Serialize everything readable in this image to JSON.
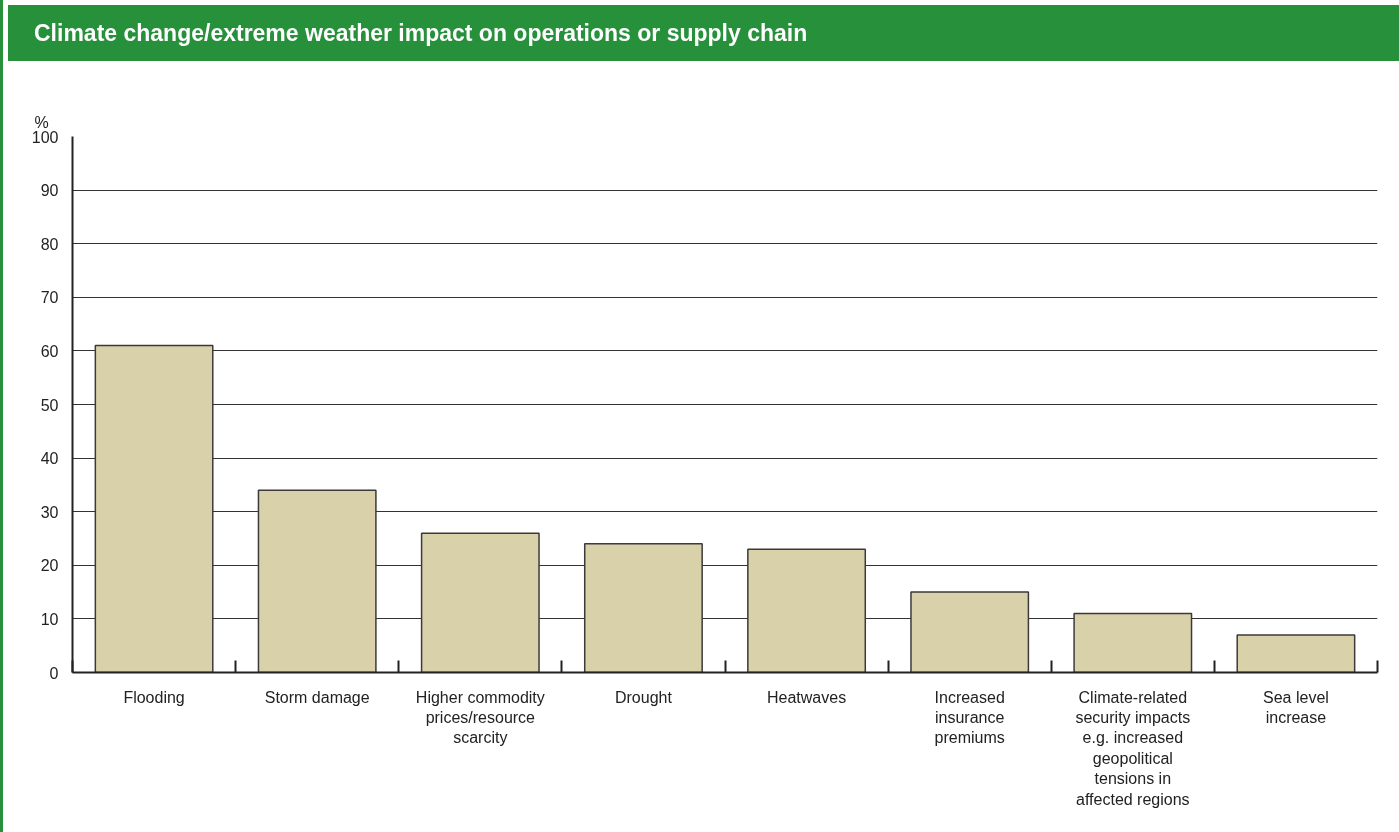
{
  "chart_data": {
    "type": "bar",
    "title": "Climate change/extreme weather impact on operations or supply chain",
    "ylabel": "%",
    "categories": [
      "Flooding",
      "Storm damage",
      "Higher commodity prices/resource scarcity",
      "Drought",
      "Heatwaves",
      "Increased insurance premiums",
      "Climate-related security impacts e.g. increased geopolitical tensions in affected regions",
      "Sea level increase"
    ],
    "values": [
      61,
      34,
      26,
      24,
      23,
      15,
      11,
      7
    ],
    "color": "#d8d1aa",
    "ylim": [
      0,
      100
    ],
    "yticks": [
      0,
      10,
      20,
      30,
      40,
      50,
      60,
      70,
      80,
      90,
      100
    ],
    "grid": "y"
  }
}
